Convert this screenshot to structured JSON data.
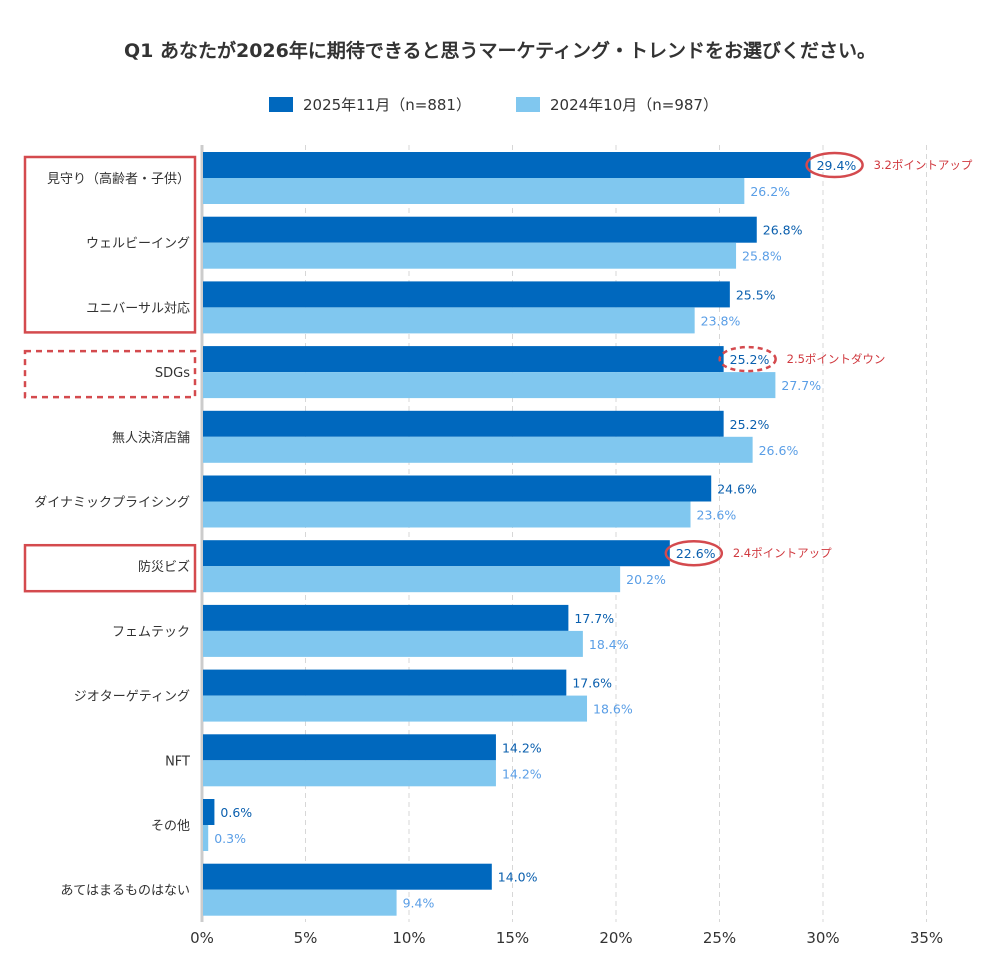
{
  "title": "Q1 あなたが2026年に期待できると思うマーケティング・トレンドをお選びください。",
  "colors": {
    "series_2025": "#0068be",
    "series_2024": "#80c7ef",
    "label_2025": "#0a5fae",
    "label_2024": "#5a9ee6",
    "highlight": "#d44a4e",
    "gridline": "#d7d7d7",
    "axis": "#cccccc"
  },
  "legend": [
    {
      "label": "2025年11月（n=881）",
      "color_key": "series_2025"
    },
    {
      "label": "2024年10月（n=987）",
      "color_key": "series_2024"
    }
  ],
  "chart_data": {
    "type": "bar",
    "orientation": "horizontal",
    "title": "Q1 あなたが2026年に期待できると思うマーケティング・トレンドをお選びください。",
    "xlabel": "",
    "ylabel": "",
    "xlim": [
      0,
      35
    ],
    "xticks": [
      0,
      5,
      10,
      15,
      20,
      25,
      30,
      35
    ],
    "xtick_labels": [
      "0%",
      "5%",
      "10%",
      "15%",
      "20%",
      "25%",
      "30%",
      "35%"
    ],
    "grid": "vertical-dashed",
    "legend_position": "top-center",
    "categories": [
      "見守り（高齢者・子供）",
      "ウェルビーイング",
      "ユニバーサル対応",
      "SDGs",
      "無人決済店舗",
      "ダイナミックプライシング",
      "防災ビズ",
      "フェムテック",
      "ジオターゲティング",
      "NFT",
      "その他",
      "あてはまるものはない"
    ],
    "series": [
      {
        "name": "2025年11月（n=881）",
        "values": [
          29.4,
          26.8,
          25.5,
          25.2,
          25.2,
          24.6,
          22.6,
          17.7,
          17.6,
          14.2,
          0.6,
          14.0
        ],
        "labels": [
          "29.4%",
          "26.8%",
          "25.5%",
          "25.2%",
          "25.2%",
          "24.6%",
          "22.6%",
          "17.7%",
          "17.6%",
          "14.2%",
          "0.6%",
          "14.0%"
        ]
      },
      {
        "name": "2024年10月（n=987）",
        "values": [
          26.2,
          25.8,
          23.8,
          27.7,
          26.6,
          23.6,
          20.2,
          18.4,
          18.6,
          14.2,
          0.3,
          9.4
        ],
        "labels": [
          "26.2%",
          "25.8%",
          "23.8%",
          "27.7%",
          "26.6%",
          "23.6%",
          "20.2%",
          "18.4%",
          "18.6%",
          "14.2%",
          "0.3%",
          "9.4%"
        ]
      }
    ],
    "annotations": [
      {
        "category_index": 0,
        "text": "3.2ポイントアップ",
        "circle_style": "solid"
      },
      {
        "category_index": 3,
        "text": "2.5ポイントダウン",
        "circle_style": "dashed"
      },
      {
        "category_index": 6,
        "text": "2.4ポイントアップ",
        "circle_style": "solid"
      }
    ],
    "highlight_boxes": [
      {
        "from_index": 0,
        "to_index": 2,
        "style": "solid"
      },
      {
        "from_index": 3,
        "to_index": 3,
        "style": "dashed"
      },
      {
        "from_index": 6,
        "to_index": 6,
        "style": "solid"
      }
    ]
  }
}
